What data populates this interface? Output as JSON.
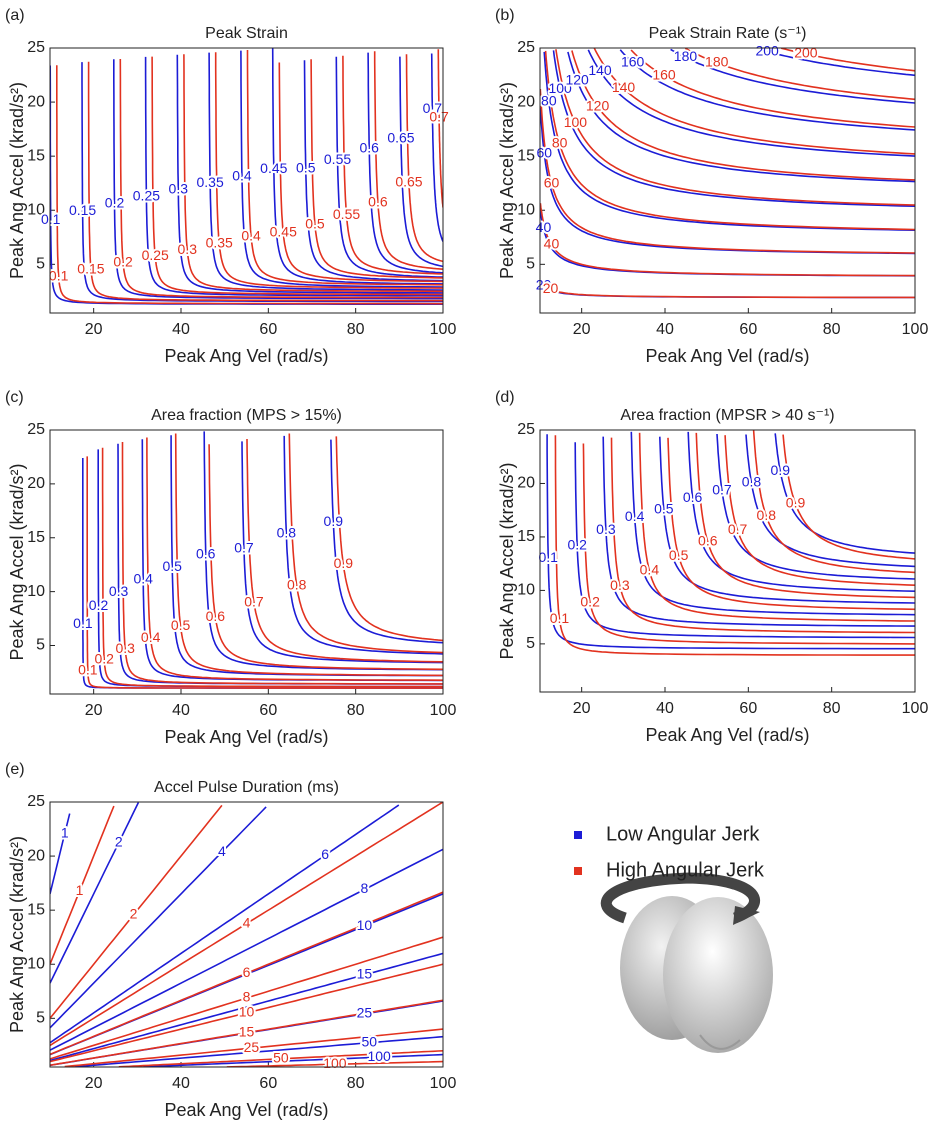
{
  "chart_data": [
    {
      "type": "contour",
      "panel": "(a)",
      "title": "Peak Strain",
      "xlabel": "Peak Ang Vel (rad/s)",
      "ylabel": "Peak Ang Accel (krad/s²)",
      "xlim": [
        10,
        100
      ],
      "ylim": [
        0.5,
        25
      ],
      "xticks": [
        20,
        40,
        60,
        80,
        100
      ],
      "yticks": [
        5,
        10,
        15,
        20,
        25
      ],
      "series": [
        {
          "color": "#1c1cd6",
          "levels": [
            0.1,
            0.15,
            0.2,
            0.25,
            0.3,
            0.35,
            0.4,
            0.45,
            0.5,
            0.55,
            0.6,
            0.65,
            0.7
          ]
        },
        {
          "color": "#e2321f",
          "levels": [
            0.1,
            0.15,
            0.2,
            0.25,
            0.3,
            0.35,
            0.4,
            0.45,
            0.5,
            0.55,
            0.6,
            0.65,
            0.7
          ]
        }
      ]
    },
    {
      "type": "contour",
      "panel": "(b)",
      "title": "Peak Strain Rate (s⁻¹)",
      "xlabel": "Peak Ang Vel (rad/s)",
      "ylabel": "Peak Ang Accel (krad/s²)",
      "xlim": [
        10,
        100
      ],
      "ylim": [
        0.5,
        25
      ],
      "xticks": [
        20,
        40,
        60,
        80,
        100
      ],
      "yticks": [
        5,
        10,
        15,
        20,
        25
      ],
      "series": [
        {
          "color": "#1c1cd6",
          "levels": [
            20,
            40,
            60,
            80,
            100,
            120,
            140,
            160,
            180,
            200
          ]
        },
        {
          "color": "#e2321f",
          "levels": [
            20,
            40,
            60,
            80,
            100,
            120,
            140,
            160,
            180,
            200
          ]
        }
      ]
    },
    {
      "type": "contour",
      "panel": "(c)",
      "title": "Area fraction (MPS > 15%)",
      "xlabel": "Peak Ang Vel (rad/s)",
      "ylabel": "Peak Ang Accel (krad/s²)",
      "xlim": [
        10,
        100
      ],
      "ylim": [
        0.5,
        25
      ],
      "xticks": [
        20,
        40,
        60,
        80,
        100
      ],
      "yticks": [
        5,
        10,
        15,
        20,
        25
      ],
      "series": [
        {
          "color": "#1c1cd6",
          "levels": [
            0.1,
            0.2,
            0.3,
            0.4,
            0.5,
            0.6,
            0.7,
            0.8,
            0.9
          ]
        },
        {
          "color": "#e2321f",
          "levels": [
            0.1,
            0.2,
            0.3,
            0.4,
            0.5,
            0.6,
            0.7,
            0.8,
            0.9
          ]
        }
      ]
    },
    {
      "type": "contour",
      "panel": "(d)",
      "title": "Area fraction (MPSR > 40 s⁻¹)",
      "xlabel": "Peak Ang Vel (rad/s)",
      "ylabel": "Peak Ang Accel (krad/s²)",
      "xlim": [
        10,
        100
      ],
      "ylim": [
        0.5,
        25
      ],
      "xticks": [
        20,
        40,
        60,
        80,
        100
      ],
      "yticks": [
        5,
        10,
        15,
        20,
        25
      ],
      "series": [
        {
          "color": "#1c1cd6",
          "levels": [
            0.1,
            0.2,
            0.3,
            0.4,
            0.5,
            0.6,
            0.7,
            0.8,
            0.9
          ]
        },
        {
          "color": "#e2321f",
          "levels": [
            0.1,
            0.2,
            0.3,
            0.4,
            0.5,
            0.6,
            0.7,
            0.8,
            0.9
          ]
        }
      ]
    },
    {
      "type": "contour",
      "panel": "(e)",
      "title": "Accel Pulse Duration (ms)",
      "xlabel": "Peak Ang Vel (rad/s)",
      "ylabel": "Peak Ang Accel (krad/s²)",
      "xlim": [
        10,
        100
      ],
      "ylim": [
        0.5,
        25
      ],
      "xticks": [
        20,
        40,
        60,
        80,
        100
      ],
      "yticks": [
        5,
        10,
        15,
        20,
        25
      ],
      "series": [
        {
          "name": "Low Angular Jerk",
          "color": "#1c1cd6",
          "levels": [
            1,
            2,
            4,
            6,
            8,
            10,
            15,
            25,
            50,
            100
          ]
        },
        {
          "name": "High Angular Jerk",
          "color": "#e2321f",
          "levels": [
            1,
            2,
            4,
            6,
            8,
            10,
            15,
            25,
            50,
            100
          ]
        }
      ]
    }
  ]
}
